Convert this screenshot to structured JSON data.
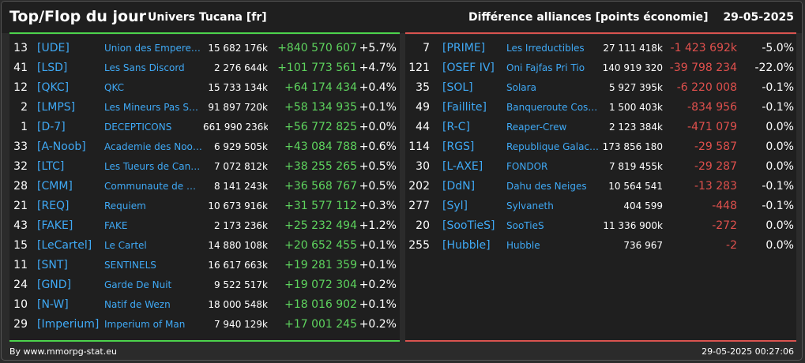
{
  "header": {
    "title": "Top/Flop du jour",
    "universe": "Univers Tucana [fr]",
    "metric": "Différence alliances [points économie]",
    "date": "29-05-2025"
  },
  "colors": {
    "positive": "#5ed45e",
    "negative": "#e0504d",
    "link": "#3fa9f5",
    "top_bar": "#4cd34c",
    "flop_bar": "#d9534f"
  },
  "top": [
    {
      "rank": "13",
      "tag": "[UDE]",
      "name": "Union des Empereurs",
      "points": "15 682 176k",
      "diff": "+840 570 607",
      "pct": "+5.7%"
    },
    {
      "rank": "41",
      "tag": "[LSD]",
      "name": "Les Sans Discord",
      "points": "2 276 644k",
      "diff": "+101 773 561",
      "pct": "+4.7%"
    },
    {
      "rank": "12",
      "tag": "[QKC]",
      "name": "QKC",
      "points": "15 733 134k",
      "diff": "+64 174 434",
      "pct": "+0.4%"
    },
    {
      "rank": "2",
      "tag": "[LMPS]",
      "name": "Les Mineurs Pas Sages",
      "points": "91 897 720k",
      "diff": "+58 134 935",
      "pct": "+0.1%"
    },
    {
      "rank": "1",
      "tag": "[D-7]",
      "name": "DECEPTICONS",
      "points": "661 990 236k",
      "diff": "+56 772 825",
      "pct": "+0.0%"
    },
    {
      "rank": "33",
      "tag": "[A-Noob]",
      "name": "Academie des Noobs",
      "points": "6 929 505k",
      "diff": "+43 084 788",
      "pct": "+0.6%"
    },
    {
      "rank": "32",
      "tag": "[LTC]",
      "name": "Les Tueurs de Canards",
      "points": "7 072 812k",
      "diff": "+38 255 265",
      "pct": "+0.5%"
    },
    {
      "rank": "28",
      "tag": "[CMM]",
      "name": "Communaute de minage",
      "points": "8 141 243k",
      "diff": "+36 568 767",
      "pct": "+0.5%"
    },
    {
      "rank": "21",
      "tag": "[REQ]",
      "name": "Requiem",
      "points": "10 673 916k",
      "diff": "+31 577 112",
      "pct": "+0.3%"
    },
    {
      "rank": "43",
      "tag": "[FAKE]",
      "name": "FAKE",
      "points": "2 173 236k",
      "diff": "+25 232 494",
      "pct": "+1.2%"
    },
    {
      "rank": "15",
      "tag": "[LeCartel]",
      "name": "Le Cartel",
      "points": "14 880 108k",
      "diff": "+20 652 455",
      "pct": "+0.1%"
    },
    {
      "rank": "11",
      "tag": "[SNT]",
      "name": "SENTINELS",
      "points": "16 617 663k",
      "diff": "+19 281 359",
      "pct": "+0.1%"
    },
    {
      "rank": "24",
      "tag": "[GND]",
      "name": "Garde De Nuit",
      "points": "9 522 517k",
      "diff": "+19 072 304",
      "pct": "+0.2%"
    },
    {
      "rank": "10",
      "tag": "[N-W]",
      "name": "Natif de Wezn",
      "points": "18 000 548k",
      "diff": "+18 016 902",
      "pct": "+0.1%"
    },
    {
      "rank": "29",
      "tag": "[Imperium]",
      "name": "Imperium of Man",
      "points": "7 940 129k",
      "diff": "+17 001 245",
      "pct": "+0.2%"
    }
  ],
  "flop": [
    {
      "rank": "7",
      "tag": "[PRIME]",
      "name": "Les Irreductibles",
      "points": "27 111 418k",
      "diff": "-1 423 692k",
      "pct": "-5.0%"
    },
    {
      "rank": "121",
      "tag": "[OSEF IV]",
      "name": "Oni Fajfas Pri Tio",
      "points": "140 919 320",
      "diff": "-39 798 234",
      "pct": "-22.0%"
    },
    {
      "rank": "35",
      "tag": "[SOL]",
      "name": "Solara",
      "points": "5 927 395k",
      "diff": "-6 220 008",
      "pct": "-0.1%"
    },
    {
      "rank": "49",
      "tag": "[Faillite]",
      "name": "Banqueroute Cosmique",
      "points": "1 500 403k",
      "diff": "-834 956",
      "pct": "-0.1%"
    },
    {
      "rank": "44",
      "tag": "[R-C]",
      "name": "Reaper-Crew",
      "points": "2 123 384k",
      "diff": "-471 079",
      "pct": "0.0%"
    },
    {
      "rank": "114",
      "tag": "[RGS]",
      "name": "Republique Galactique",
      "points": "173 856 180",
      "diff": "-29 587",
      "pct": "0.0%"
    },
    {
      "rank": "30",
      "tag": "[L-AXE]",
      "name": "FONDOR",
      "points": "7 819 455k",
      "diff": "-29 287",
      "pct": "0.0%"
    },
    {
      "rank": "202",
      "tag": "[DdN]",
      "name": "Dahu des Neiges",
      "points": "10 564 541",
      "diff": "-13 283",
      "pct": "-0.1%"
    },
    {
      "rank": "277",
      "tag": "[Syl]",
      "name": "Sylvaneth",
      "points": "404 599",
      "diff": "-448",
      "pct": "-0.1%"
    },
    {
      "rank": "20",
      "tag": "[SooTieS]",
      "name": "SooTieS",
      "points": "11 336 900k",
      "diff": "-272",
      "pct": "0.0%"
    },
    {
      "rank": "255",
      "tag": "[Hubble]",
      "name": "Hubble",
      "points": "736 967",
      "diff": "-2",
      "pct": "0.0%"
    }
  ],
  "footer": {
    "source": "By www.mmorpg-stat.eu",
    "timestamp": "29-05-2025 00:27:06"
  }
}
